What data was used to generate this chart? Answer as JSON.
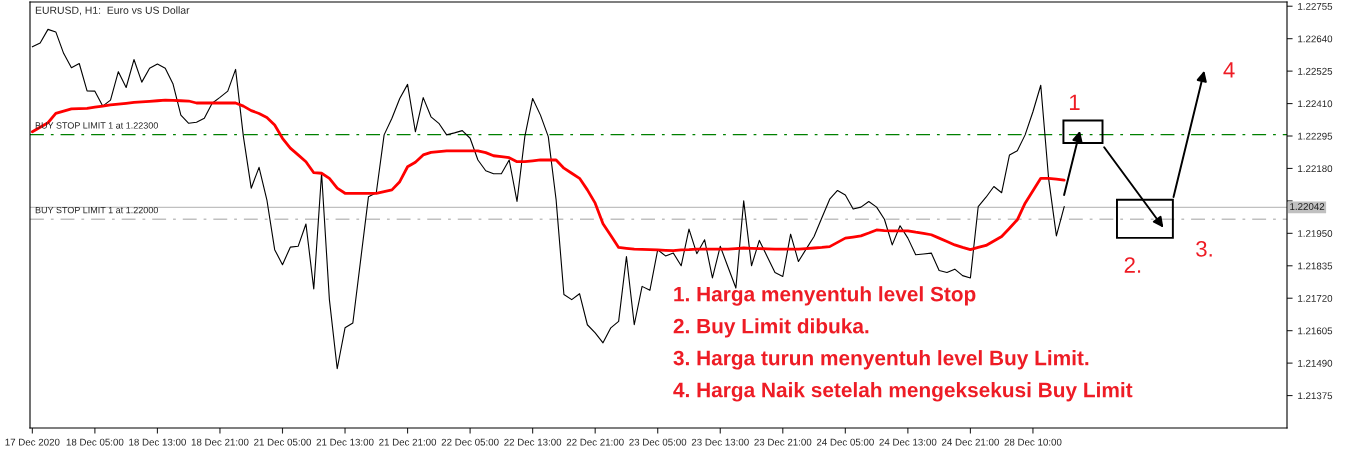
{
  "chart_data": {
    "type": "line",
    "title": "EURUSD, H1:  Euro vs US Dollar",
    "categories": [
      "17 Dec 2020",
      null,
      null,
      null,
      null,
      null,
      null,
      null,
      "18 Dec 05:00",
      null,
      null,
      null,
      null,
      null,
      null,
      null,
      "18 Dec 13:00",
      null,
      null,
      null,
      null,
      null,
      null,
      null,
      "18 Dec 21:00",
      null,
      null,
      null,
      null,
      null,
      null,
      null,
      "21 Dec 05:00",
      null,
      null,
      null,
      null,
      null,
      null,
      null,
      "21 Dec 13:00",
      null,
      null,
      null,
      null,
      null,
      null,
      null,
      "21 Dec 21:00",
      null,
      null,
      null,
      null,
      null,
      null,
      null,
      "22 Dec 05:00",
      null,
      null,
      null,
      null,
      null,
      null,
      null,
      "22 Dec 13:00",
      null,
      null,
      null,
      null,
      null,
      null,
      null,
      "22 Dec 21:00",
      null,
      null,
      null,
      null,
      null,
      null,
      null,
      "23 Dec 05:00",
      null,
      null,
      null,
      null,
      null,
      null,
      null,
      "23 Dec 13:00",
      null,
      null,
      null,
      null,
      null,
      null,
      null,
      "23 Dec 21:00",
      null,
      null,
      null,
      null,
      null,
      null,
      null,
      "24 Dec 05:00",
      null,
      null,
      null,
      null,
      null,
      null,
      null,
      "24 Dec 13:00",
      null,
      null,
      null,
      null,
      null,
      null,
      null,
      "24 Dec 21:00",
      null,
      null,
      null,
      null,
      null,
      null,
      null,
      "28 Dec 10:00",
      null,
      null,
      null,
      null,
      null,
      null,
      null,
      null,
      null,
      null,
      null,
      null,
      null,
      null,
      null,
      null,
      null,
      null,
      null,
      null,
      null,
      null,
      null,
      null,
      null,
      null,
      null,
      null,
      null,
      null,
      null,
      null
    ],
    "ylim": [
      1.2126,
      1.2277
    ],
    "yticks": [
      {
        "value": 1.21375,
        "label": "1.21375"
      },
      {
        "value": 1.2149,
        "label": "1.21490"
      },
      {
        "value": 1.21605,
        "label": "1.21605"
      },
      {
        "value": 1.2172,
        "label": "1.21720"
      },
      {
        "value": 1.21835,
        "label": "1.21835"
      },
      {
        "value": 1.2195,
        "label": "1.21950"
      },
      {
        "value": 1.22065,
        "label": null
      },
      {
        "value": 1.2218,
        "label": "1.22180"
      },
      {
        "value": 1.22295,
        "label": "1.22295"
      },
      {
        "value": 1.2241,
        "label": "1.22410"
      },
      {
        "value": 1.22525,
        "label": "1.22525"
      },
      {
        "value": 1.2264,
        "label": "1.22640"
      },
      {
        "value": 1.22755,
        "label": "1.22755"
      }
    ],
    "grid": false,
    "series": [
      {
        "color": "#000000",
        "values": [
          1.22611,
          1.22625,
          1.22673,
          1.22664,
          1.22588,
          1.22537,
          1.22552,
          1.22455,
          1.22454,
          1.22401,
          1.22422,
          1.22523,
          1.22467,
          1.22566,
          1.22486,
          1.22535,
          1.2255,
          1.22535,
          1.22479,
          1.22369,
          1.2234,
          1.22344,
          1.22358,
          1.22411,
          1.22432,
          1.22454,
          1.22531,
          1.22293,
          1.2211,
          1.22184,
          1.22069,
          1.21892,
          1.21839,
          1.21901,
          1.21904,
          1.21983,
          1.21753,
          1.22163,
          1.21715,
          1.2147,
          1.21615,
          1.21632,
          1.21856,
          1.2208,
          1.22094,
          1.22299,
          1.22358,
          1.22428,
          1.22478,
          1.2231,
          1.22431,
          1.22363,
          1.2234,
          1.22299,
          1.22306,
          1.22314,
          1.22287,
          1.2221,
          1.22172,
          1.22161,
          1.22161,
          1.2221,
          1.22063,
          1.22293,
          1.22428,
          1.22369,
          1.22293,
          1.22069,
          1.21733,
          1.21715,
          1.21736,
          1.21626,
          1.21597,
          1.21562,
          1.21615,
          1.21638,
          1.21868,
          1.21626,
          1.21762,
          1.21748,
          1.21892,
          1.2187,
          1.2188,
          1.21835,
          1.21965,
          1.21878,
          1.21927,
          1.21792,
          1.21904,
          1.2183,
          1.21756,
          1.22065,
          1.21835,
          1.21925,
          1.21868,
          1.21811,
          1.21797,
          1.21947,
          1.2185,
          1.21895,
          1.21939,
          1.22005,
          1.22071,
          1.22102,
          1.22086,
          1.22036,
          1.22043,
          1.22063,
          1.22043,
          1.22,
          1.21909,
          1.21977,
          1.21933,
          1.21874,
          1.21877,
          1.2188,
          1.21818,
          1.21811,
          1.21823,
          1.218,
          1.21792,
          1.22045,
          1.22078,
          1.22116,
          1.22094,
          1.22228,
          1.22243,
          1.22299,
          1.22381,
          1.22475,
          1.22145,
          1.21941,
          1.22045,
          null,
          null,
          null,
          null,
          null,
          null,
          null,
          null,
          null,
          null,
          null,
          null,
          null,
          null,
          null,
          null,
          null,
          null,
          null,
          null,
          null,
          null,
          null,
          null,
          null,
          null,
          null,
          null
        ]
      },
      {
        "color": "#ff0000",
        "values": [
          1.2231,
          1.22326,
          1.22342,
          1.22375,
          1.22383,
          1.22391,
          1.22392,
          1.22393,
          1.22397,
          1.22401,
          1.22405,
          1.22408,
          1.22411,
          1.22414,
          1.22416,
          1.22418,
          1.2242,
          1.22422,
          1.22421,
          1.2242,
          1.22419,
          1.22412,
          1.22412,
          1.22412,
          1.22412,
          1.22412,
          1.22412,
          1.22401,
          1.22385,
          1.22375,
          1.22361,
          1.22334,
          1.22287,
          1.22252,
          1.22228,
          1.22204,
          1.22165,
          1.22163,
          1.22145,
          1.2211,
          1.22092,
          1.22092,
          1.22092,
          1.22092,
          1.22092,
          1.22098,
          1.22104,
          1.22133,
          1.22186,
          1.22202,
          1.22228,
          1.22237,
          1.2224,
          1.22242,
          1.22242,
          1.22242,
          1.22242,
          1.22242,
          1.22236,
          1.22225,
          1.22222,
          1.22218,
          1.22204,
          1.22204,
          1.22207,
          1.2221,
          1.2221,
          1.2221,
          1.22181,
          1.22163,
          1.22145,
          1.22104,
          1.22057,
          1.21984,
          1.21942,
          1.219,
          1.21897,
          1.21894,
          1.21893,
          1.21892,
          1.21891,
          1.2189,
          1.21889,
          1.21891,
          1.21892,
          1.21894,
          1.21894,
          1.21894,
          1.21894,
          1.21894,
          1.21896,
          1.21898,
          1.21897,
          1.21896,
          1.21895,
          1.21894,
          1.21894,
          1.21894,
          1.21894,
          1.21896,
          1.21898,
          1.219,
          1.21903,
          1.21918,
          1.21933,
          1.21937,
          1.21941,
          1.21951,
          1.21962,
          1.2196,
          1.21959,
          1.21959,
          1.21959,
          1.21954,
          1.2195,
          1.21945,
          1.21933,
          1.21921,
          1.21909,
          1.219,
          1.21892,
          1.219,
          1.21907,
          1.21923,
          1.21939,
          1.21968,
          1.21998,
          1.22057,
          1.22101,
          1.22145,
          1.22145,
          1.22142,
          1.22139,
          null,
          null,
          null,
          null,
          null,
          null,
          null,
          null,
          null,
          null,
          null,
          null,
          null,
          null,
          null,
          null,
          null,
          null,
          null,
          null,
          null,
          null,
          null,
          null,
          null,
          null,
          null,
          null
        ]
      }
    ],
    "ref_lines": [
      {
        "axis": "y",
        "value": 1.223,
        "label": "BUY STOP LIMIT 1 at 1.22300",
        "color": "#008000",
        "line_style": "dashdot"
      },
      {
        "axis": "y",
        "value": 1.22,
        "label": "BUY STOP LIMIT 1 at 1.22000",
        "color": "#c0c0c0",
        "line_style": "dashdot"
      },
      {
        "axis": "y",
        "value": 1.22042,
        "label": "1.22042",
        "color": "#c0c0c0",
        "line_style": "solid"
      }
    ],
    "annotations": [
      "1. Harga menyentuh level Stop",
      "2. Buy Limit dibuka.",
      "3. Harga turun menyentuh level Buy Limit.",
      "4. Harga Naik setelah mengeksekusi Buy Limit",
      "1",
      "2.",
      "3.",
      "4"
    ]
  }
}
